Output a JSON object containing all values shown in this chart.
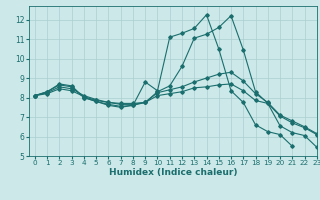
{
  "xlabel": "Humidex (Indice chaleur)",
  "bg_color": "#cce8e8",
  "grid_color": "#aacfcf",
  "line_color": "#1a6e6e",
  "xlim": [
    -0.5,
    23
  ],
  "ylim": [
    5,
    12.7
  ],
  "yticks": [
    5,
    6,
    7,
    8,
    9,
    10,
    11,
    12
  ],
  "xticks": [
    0,
    1,
    2,
    3,
    4,
    5,
    6,
    7,
    8,
    9,
    10,
    11,
    12,
    13,
    14,
    15,
    16,
    17,
    18,
    19,
    20,
    21,
    22,
    23
  ],
  "curves": [
    {
      "x": [
        0,
        1,
        2,
        3,
        4,
        5,
        6,
        7,
        8,
        9,
        10,
        11,
        12,
        13,
        14,
        15,
        16,
        17,
        18,
        19,
        20,
        21,
        22,
        23
      ],
      "y": [
        8.1,
        8.3,
        8.7,
        8.6,
        8.0,
        7.8,
        7.6,
        7.5,
        7.6,
        8.8,
        8.35,
        11.1,
        11.3,
        11.55,
        12.25,
        10.5,
        8.35,
        7.75,
        6.6,
        6.25,
        6.1,
        5.5,
        null,
        null
      ]
    },
    {
      "x": [
        0,
        1,
        2,
        3,
        4,
        5,
        6,
        7,
        8,
        9,
        10,
        11,
        12,
        13,
        14,
        15,
        16,
        17,
        18,
        19,
        20,
        21,
        22,
        23
      ],
      "y": [
        8.1,
        8.3,
        8.65,
        8.55,
        8.0,
        7.8,
        7.65,
        7.55,
        7.6,
        7.75,
        8.3,
        8.6,
        9.6,
        11.05,
        11.25,
        11.6,
        12.2,
        10.45,
        8.3,
        7.7,
        6.55,
        6.2,
        6.05,
        5.45
      ]
    },
    {
      "x": [
        0,
        1,
        2,
        3,
        4,
        5,
        6,
        7,
        8,
        9,
        10,
        11,
        12,
        13,
        14,
        15,
        16,
        17,
        18,
        19,
        20,
        21,
        22,
        23
      ],
      "y": [
        8.1,
        8.25,
        8.55,
        8.45,
        8.1,
        7.9,
        7.75,
        7.65,
        7.65,
        7.75,
        8.25,
        8.4,
        8.55,
        8.8,
        9.0,
        9.2,
        9.3,
        8.85,
        8.2,
        7.75,
        7.1,
        6.8,
        6.5,
        6.15
      ]
    },
    {
      "x": [
        0,
        1,
        2,
        3,
        4,
        5,
        6,
        7,
        8,
        9,
        10,
        11,
        12,
        13,
        14,
        15,
        16,
        17,
        18,
        19,
        20,
        21,
        22,
        23
      ],
      "y": [
        8.1,
        8.2,
        8.45,
        8.35,
        8.05,
        7.85,
        7.75,
        7.7,
        7.7,
        7.75,
        8.1,
        8.2,
        8.3,
        8.5,
        8.55,
        8.65,
        8.7,
        8.35,
        7.85,
        7.7,
        7.05,
        6.7,
        6.45,
        6.1
      ]
    }
  ]
}
